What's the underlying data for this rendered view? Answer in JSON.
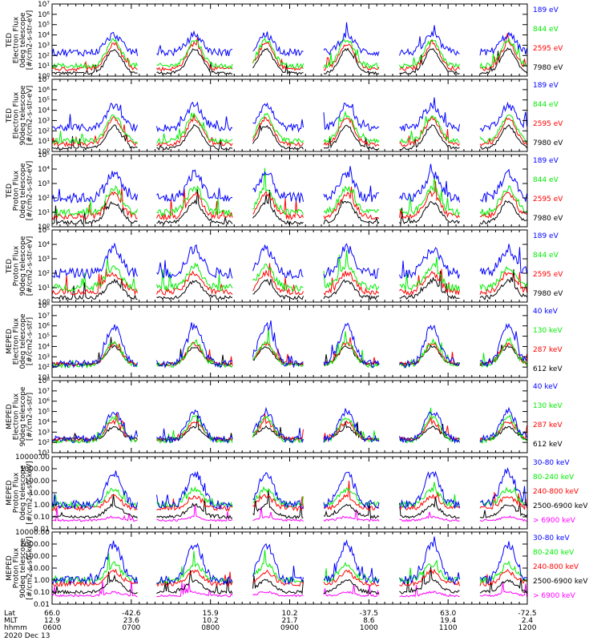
{
  "figure": {
    "date_label": "2020 Dec 13",
    "axis_row_labels": [
      "Lat",
      "MLT",
      "hhmm"
    ],
    "time_axis": {
      "lat": [
        "66.0",
        "-42.6",
        "15.9",
        "10.2",
        "-37.5",
        "63.0",
        "-72.5"
      ],
      "mlt": [
        "12.9",
        "23.6",
        "10.2",
        "21.7",
        "8.6",
        "19.4",
        "2.4"
      ],
      "hhmm": [
        "0600",
        "0700",
        "0800",
        "0900",
        "1000",
        "1100",
        "1200"
      ]
    }
  },
  "colors": {
    "blue": "#0000ff",
    "red": "#ff0000",
    "green": "#00ee00",
    "black": "#000000",
    "magenta": "#ff00ff"
  },
  "chart_data": [
    {
      "type": "line",
      "ylabel": [
        "TED",
        "Electron Flux",
        "0deg telescope",
        "[#/cm2-s-str-eV]"
      ],
      "yscale": "log",
      "ylim": [
        1,
        10000000
      ],
      "tick_labels": [
        "10⁰",
        "10¹",
        "10²",
        "10³",
        "10⁴",
        "10⁵",
        "10⁶",
        "10⁷"
      ],
      "x": [
        "0600",
        "0700",
        "0800",
        "0900",
        "1000",
        "1100",
        "1200"
      ],
      "series": [
        {
          "name": "7980 eV",
          "color": "black",
          "baseline": 2,
          "peak": 400,
          "bursts": [
            0.13,
            0.3,
            0.45,
            0.62,
            0.8,
            0.96
          ],
          "level": 0.3
        },
        {
          "name": "2595 eV",
          "color": "red",
          "baseline": 5,
          "peak": 1500,
          "bursts": [
            0.13,
            0.3,
            0.45,
            0.62,
            0.8,
            0.96
          ],
          "level": 0.45
        },
        {
          "name": "844 eV",
          "color": "green",
          "baseline": 10,
          "peak": 3000,
          "bursts": [
            0.13,
            0.3,
            0.45,
            0.62,
            0.8,
            0.96
          ],
          "level": 0.55
        },
        {
          "name": "189 eV",
          "color": "blue",
          "baseline": 200,
          "peak": 10000,
          "bursts": [
            0.13,
            0.3,
            0.45,
            0.62,
            0.8,
            0.96
          ],
          "level": 0.8
        }
      ]
    },
    {
      "type": "line",
      "ylabel": [
        "TED",
        "Electron Flux",
        "90deg telescope",
        "[#/cm2-s-str-eV]"
      ],
      "yscale": "log",
      "ylim": [
        1,
        10000000
      ],
      "tick_labels": [
        "10⁰",
        "10¹",
        "10²",
        "10³",
        "10⁴",
        "10⁵",
        "10⁶",
        "10⁷"
      ],
      "x": [
        "0600",
        "0700",
        "0800",
        "0900",
        "1000",
        "1100",
        "1200"
      ],
      "series": [
        {
          "name": "7980 eV",
          "color": "black",
          "baseline": 2,
          "peak": 300,
          "bursts": [
            0.13,
            0.3,
            0.45,
            0.62,
            0.8,
            0.96
          ],
          "level": 0.3
        },
        {
          "name": "2595 eV",
          "color": "red",
          "baseline": 5,
          "peak": 1500,
          "bursts": [
            0.13,
            0.3,
            0.45,
            0.62,
            0.8,
            0.96
          ],
          "level": 0.45
        },
        {
          "name": "844 eV",
          "color": "green",
          "baseline": 10,
          "peak": 3000,
          "bursts": [
            0.13,
            0.3,
            0.45,
            0.62,
            0.8,
            0.96
          ],
          "level": 0.55
        },
        {
          "name": "189 eV",
          "color": "blue",
          "baseline": 200,
          "peak": 30000,
          "bursts": [
            0.13,
            0.3,
            0.45,
            0.62,
            0.8,
            0.96
          ],
          "level": 0.8
        }
      ]
    },
    {
      "type": "line",
      "ylabel": [
        "TED",
        "Proton Flux",
        "0deg telescope",
        "[#/cm2-s-str-eV]"
      ],
      "yscale": "log",
      "ylim": [
        1,
        100000
      ],
      "tick_labels": [
        "10⁰",
        "10¹",
        "10²",
        "10³",
        "10⁴",
        "10⁵"
      ],
      "x": [
        "0600",
        "0700",
        "0800",
        "0900",
        "1000",
        "1100",
        "1200"
      ],
      "series": [
        {
          "name": "7980 eV",
          "color": "black",
          "baseline": 2,
          "peak": 50,
          "bursts": [
            0.13,
            0.3,
            0.45,
            0.62,
            0.8,
            0.96
          ],
          "level": 0.3
        },
        {
          "name": "2595 eV",
          "color": "red",
          "baseline": 5,
          "peak": 200,
          "bursts": [
            0.13,
            0.3,
            0.45,
            0.62,
            0.8,
            0.96
          ],
          "level": 0.45
        },
        {
          "name": "844 eV",
          "color": "green",
          "baseline": 10,
          "peak": 500,
          "bursts": [
            0.13,
            0.3,
            0.45,
            0.62,
            0.8,
            0.96
          ],
          "level": 0.55
        },
        {
          "name": "189 eV",
          "color": "blue",
          "baseline": 100,
          "peak": 5000,
          "bursts": [
            0.13,
            0.3,
            0.45,
            0.62,
            0.8,
            0.96
          ],
          "level": 0.8
        }
      ]
    },
    {
      "type": "line",
      "ylabel": [
        "TED",
        "Proton Flux",
        "90deg telescope",
        "[#/cm2-s-str-eV]"
      ],
      "yscale": "log",
      "ylim": [
        1,
        100000
      ],
      "tick_labels": [
        "10⁰",
        "10¹",
        "10²",
        "10³",
        "10⁴",
        "10⁵"
      ],
      "x": [
        "0600",
        "0700",
        "0800",
        "0900",
        "1000",
        "1100",
        "1200"
      ],
      "series": [
        {
          "name": "7980 eV",
          "color": "black",
          "baseline": 2,
          "peak": 30,
          "bursts": [
            0.13,
            0.3,
            0.45,
            0.62,
            0.8,
            0.96
          ],
          "level": 0.3
        },
        {
          "name": "2595 eV",
          "color": "red",
          "baseline": 5,
          "peak": 100,
          "bursts": [
            0.13,
            0.3,
            0.45,
            0.62,
            0.8,
            0.96
          ],
          "level": 0.45
        },
        {
          "name": "844 eV",
          "color": "green",
          "baseline": 10,
          "peak": 300,
          "bursts": [
            0.13,
            0.3,
            0.45,
            0.62,
            0.8,
            0.96
          ],
          "level": 0.55
        },
        {
          "name": "189 eV",
          "color": "blue",
          "baseline": 100,
          "peak": 5000,
          "bursts": [
            0.13,
            0.3,
            0.45,
            0.62,
            0.8,
            0.96
          ],
          "level": 0.8
        }
      ]
    },
    {
      "type": "line",
      "ylabel": [
        "MEPED",
        "Electron Flux",
        "0deg telescope",
        "[#/cm2-s-str]"
      ],
      "yscale": "log",
      "ylim": [
        10,
        100000000
      ],
      "tick_labels": [
        "10¹",
        "10²",
        "10³",
        "10⁴",
        "10⁵",
        "10⁶",
        "10⁷",
        "10⁸"
      ],
      "x": [
        "0600",
        "0700",
        "0800",
        "0900",
        "1000",
        "1100",
        "1200"
      ],
      "series": [
        {
          "name": "612 keV",
          "color": "black",
          "baseline": 200,
          "peak": 10000,
          "bursts": [
            0.13,
            0.3,
            0.45,
            0.62,
            0.8,
            0.96
          ],
          "level": 0.3
        },
        {
          "name": "287 keV",
          "color": "red",
          "baseline": 200,
          "peak": 20000,
          "bursts": [
            0.13,
            0.3,
            0.45,
            0.62,
            0.8,
            0.96
          ],
          "level": 0.45
        },
        {
          "name": "130 keV",
          "color": "green",
          "baseline": 150,
          "peak": 30000,
          "bursts": [
            0.13,
            0.3,
            0.45,
            0.62,
            0.8,
            0.96
          ],
          "level": 0.55
        },
        {
          "name": "40 keV",
          "color": "blue",
          "baseline": 200,
          "peak": 1000000,
          "bursts": [
            0.13,
            0.3,
            0.45,
            0.62,
            0.8,
            0.96
          ],
          "level": 0.8
        }
      ]
    },
    {
      "type": "line",
      "ylabel": [
        "MEPED",
        "Electron Flux",
        "90deg telescope",
        "[#/cm2-s-str]"
      ],
      "yscale": "log",
      "ylim": [
        10,
        100000000
      ],
      "tick_labels": [
        "10¹",
        "10²",
        "10³",
        "10⁴",
        "10⁵",
        "10⁶",
        "10⁷",
        "10⁸"
      ],
      "x": [
        "0600",
        "0700",
        "0800",
        "0900",
        "1000",
        "1100",
        "1200"
      ],
      "series": [
        {
          "name": "612 keV",
          "color": "black",
          "baseline": 200,
          "peak": 3000,
          "bursts": [
            0.13,
            0.3,
            0.45,
            0.62,
            0.8,
            0.96
          ],
          "level": 0.3
        },
        {
          "name": "287 keV",
          "color": "red",
          "baseline": 200,
          "peak": 10000,
          "bursts": [
            0.13,
            0.3,
            0.45,
            0.62,
            0.8,
            0.96
          ],
          "level": 0.45
        },
        {
          "name": "130 keV",
          "color": "green",
          "baseline": 150,
          "peak": 30000,
          "bursts": [
            0.13,
            0.3,
            0.45,
            0.62,
            0.8,
            0.96
          ],
          "level": 0.55
        },
        {
          "name": "40 keV",
          "color": "blue",
          "baseline": 200,
          "peak": 100000,
          "bursts": [
            0.13,
            0.3,
            0.45,
            0.62,
            0.8,
            0.96
          ],
          "level": 0.8
        }
      ]
    },
    {
      "type": "line",
      "ylabel": [
        "MEPED",
        "Proton Flux",
        "0deg telescope",
        "[#/cm2-s-str-keV]"
      ],
      "yscale": "log",
      "ylim": [
        0.01,
        10000
      ],
      "tick_labels": [
        "0.01",
        "0.10",
        "1.00",
        "10.00",
        "100.00",
        "1000.00",
        "10000.00"
      ],
      "x": [
        "0600",
        "0700",
        "0800",
        "0900",
        "1000",
        "1100",
        "1200"
      ],
      "series": [
        {
          "name": "> 6900 keV",
          "color": "magenta",
          "baseline": 0.05,
          "peak": 0.1,
          "bursts": [
            0.13,
            0.3,
            0.45,
            0.62,
            0.8,
            0.96
          ],
          "level": 0.2
        },
        {
          "name": "2500-6900 keV",
          "color": "black",
          "baseline": 0.1,
          "peak": 1,
          "bursts": [
            0.13,
            0.3,
            0.45,
            0.62,
            0.8,
            0.96
          ],
          "level": 0.3
        },
        {
          "name": "240-800 keV",
          "color": "red",
          "baseline": 0.5,
          "peak": 5,
          "bursts": [
            0.13,
            0.3,
            0.45,
            0.62,
            0.8,
            0.96
          ],
          "level": 0.45
        },
        {
          "name": "80-240 keV",
          "color": "green",
          "baseline": 1,
          "peak": 20,
          "bursts": [
            0.13,
            0.3,
            0.45,
            0.62,
            0.8,
            0.96
          ],
          "level": 0.55
        },
        {
          "name": "30-80 keV",
          "color": "blue",
          "baseline": 1,
          "peak": 500,
          "bursts": [
            0.13,
            0.3,
            0.45,
            0.62,
            0.8,
            0.96
          ],
          "level": 0.8
        }
      ]
    },
    {
      "type": "line",
      "ylabel": [
        "MEPED",
        "Proton Flux",
        "90deg telescope",
        "[#/cm2-s-str-keV]"
      ],
      "yscale": "log",
      "ylim": [
        0.01,
        10000
      ],
      "tick_labels": [
        "0.01",
        "0.10",
        "1.00",
        "10.00",
        "100.00",
        "1000.00",
        "10000.00"
      ],
      "x": [
        "0600",
        "0700",
        "0800",
        "0900",
        "1000",
        "1100",
        "1200"
      ],
      "series": [
        {
          "name": "> 6900 keV",
          "color": "magenta",
          "baseline": 0.05,
          "peak": 0.1,
          "bursts": [
            0.13,
            0.3,
            0.45,
            0.62,
            0.8,
            0.96
          ],
          "level": 0.2
        },
        {
          "name": "2500-6900 keV",
          "color": "black",
          "baseline": 0.1,
          "peak": 1,
          "bursts": [
            0.13,
            0.3,
            0.45,
            0.62,
            0.8,
            0.96
          ],
          "level": 0.3
        },
        {
          "name": "240-800 keV",
          "color": "red",
          "baseline": 0.5,
          "peak": 5,
          "bursts": [
            0.13,
            0.3,
            0.45,
            0.62,
            0.8,
            0.96
          ],
          "level": 0.45
        },
        {
          "name": "80-240 keV",
          "color": "green",
          "baseline": 1,
          "peak": 20,
          "bursts": [
            0.13,
            0.3,
            0.45,
            0.62,
            0.8,
            0.96
          ],
          "level": 0.55
        },
        {
          "name": "30-80 keV",
          "color": "blue",
          "baseline": 1,
          "peak": 1000,
          "bursts": [
            0.13,
            0.3,
            0.45,
            0.62,
            0.8,
            0.96
          ],
          "level": 0.8
        }
      ]
    }
  ]
}
